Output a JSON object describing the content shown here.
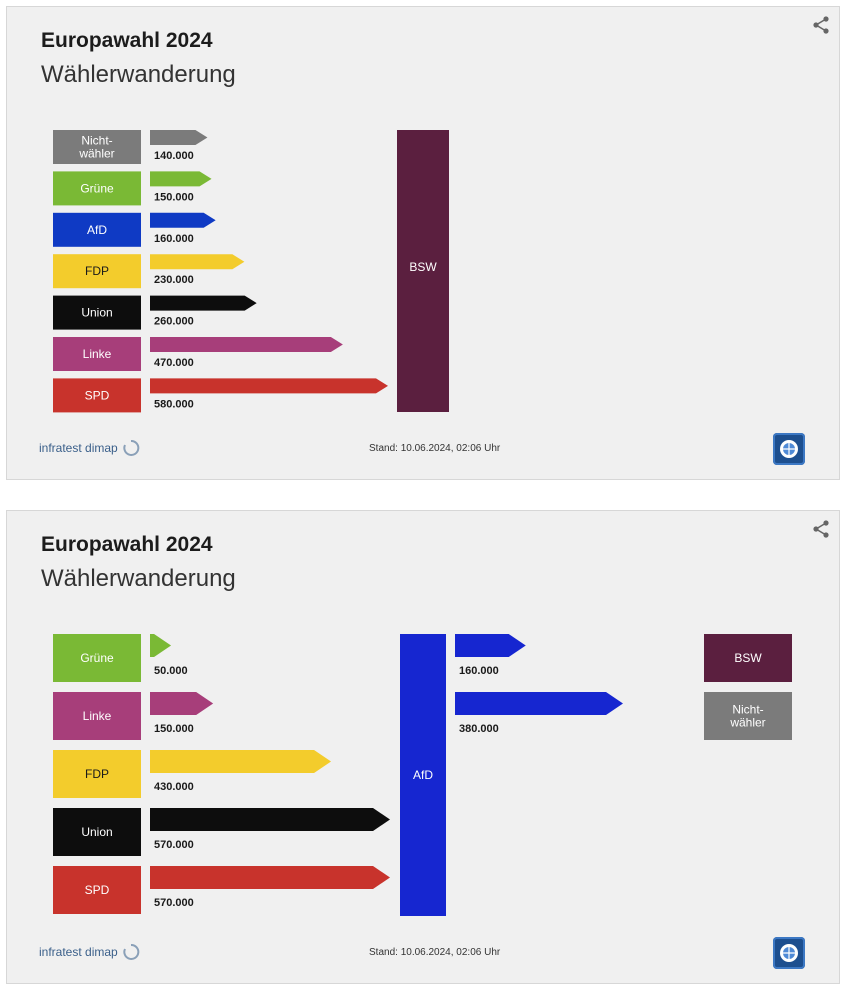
{
  "panels": [
    {
      "title": "Europawahl 2024",
      "subtitle": "Wählerwanderung",
      "source": "infratest dimap",
      "stand": "Stand: 10.06.2024, 02:06 Uhr"
    },
    {
      "title": "Europawahl 2024",
      "subtitle": "Wählerwanderung",
      "source": "infratest dimap",
      "stand": "Stand: 10.06.2024, 02:06 Uhr"
    }
  ],
  "icons": {
    "share": "share-icon",
    "source": "infratest-dimap-logo-icon",
    "broadcaster": "tagesschau-logo-icon"
  },
  "chart_data": [
    {
      "type": "bar",
      "target": "BSW",
      "target_color": "#5b1f3f",
      "categories": [
        "Nicht-\nwähler",
        "Grüne",
        "AfD",
        "FDP",
        "Union",
        "Linke",
        "SPD"
      ],
      "values": [
        140000,
        150000,
        160000,
        230000,
        260000,
        470000,
        580000
      ],
      "value_labels": [
        "140.000",
        "150.000",
        "160.000",
        "230.000",
        "260.000",
        "470.000",
        "580.000"
      ],
      "colors": [
        "#7b7b7b",
        "#7ab935",
        "#0f3ac4",
        "#f3cc2c",
        "#0d0d0d",
        "#a73e7a",
        "#c8332c"
      ],
      "label_colors": [
        "#ffffff",
        "#ffffff",
        "#ffffff",
        "#1a1a1a",
        "#ffffff",
        "#ffffff",
        "#ffffff"
      ]
    },
    {
      "type": "bar",
      "target": "AfD",
      "target_color": "#1626d0",
      "categories": [
        "Grüne",
        "Linke",
        "FDP",
        "Union",
        "SPD"
      ],
      "values": [
        50000,
        150000,
        430000,
        570000,
        570000
      ],
      "value_labels": [
        "50.000",
        "150.000",
        "430.000",
        "570.000",
        "570.000"
      ],
      "colors": [
        "#7ab935",
        "#a73e7a",
        "#f3cc2c",
        "#0d0d0d",
        "#c8332c"
      ],
      "label_colors": [
        "#ffffff",
        "#ffffff",
        "#1a1a1a",
        "#ffffff",
        "#ffffff"
      ],
      "outflows": {
        "categories": [
          "BSW",
          "Nicht-\nwähler"
        ],
        "values": [
          160000,
          380000
        ],
        "value_labels": [
          "160.000",
          "380.000"
        ],
        "colors": [
          "#5b1f3f",
          "#7b7b7b"
        ],
        "label_colors": [
          "#ffffff",
          "#ffffff"
        ]
      }
    }
  ]
}
